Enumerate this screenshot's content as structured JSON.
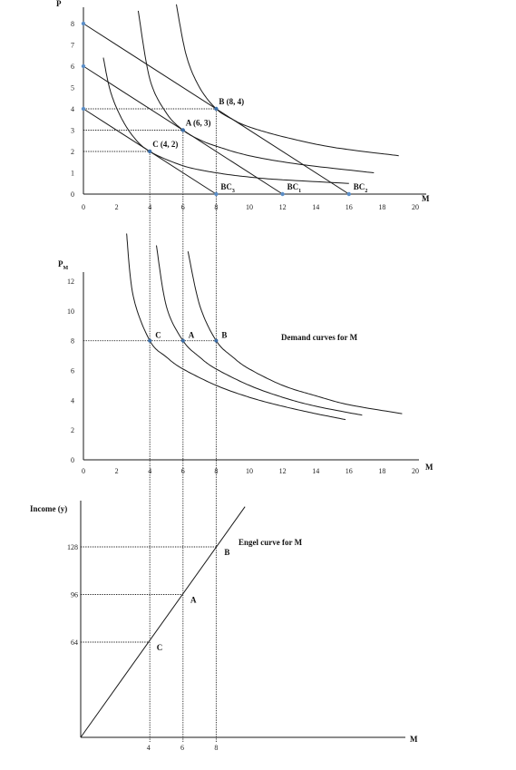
{
  "chart_data": [
    {
      "type": "line",
      "panel": "indifference-budget",
      "ylabel": "P",
      "xlabel": "M",
      "xlim": [
        0,
        20
      ],
      "ylim": [
        0,
        8
      ],
      "xticks": [
        "0",
        "2",
        "4",
        "6",
        "8",
        "10",
        "12",
        "14",
        "16",
        "18",
        "20"
      ],
      "yticks": [
        "0",
        "1",
        "2",
        "3",
        "4",
        "5",
        "6",
        "7",
        "8"
      ],
      "budget_lines": [
        {
          "name": "BC",
          "sub": "3",
          "x": [
            0,
            8
          ],
          "y": [
            4,
            0
          ]
        },
        {
          "name": "BC",
          "sub": "1",
          "x": [
            0,
            12
          ],
          "y": [
            6,
            0
          ]
        },
        {
          "name": "BC",
          "sub": "2",
          "x": [
            0,
            16
          ],
          "y": [
            8,
            0
          ]
        }
      ],
      "indifference_curves": [
        {
          "x": [
            1.2,
            1.6,
            2.2,
            3,
            4,
            6,
            8,
            10,
            12,
            16
          ],
          "y": [
            6.4,
            4.9,
            3.7,
            2.7,
            2.0,
            1.33,
            1.0,
            0.8,
            0.67,
            0.5
          ]
        },
        {
          "x": [
            3.3,
            4,
            5,
            6,
            7,
            8,
            10,
            13,
            17.5
          ],
          "y": [
            8.6,
            5.4,
            3.8,
            3.0,
            2.55,
            2.25,
            1.8,
            1.4,
            1.0
          ]
        },
        {
          "x": [
            5.6,
            6.2,
            7,
            8,
            9,
            10,
            12,
            15,
            19
          ],
          "y": [
            8.9,
            6.5,
            5.0,
            4.0,
            3.5,
            3.15,
            2.7,
            2.2,
            1.8
          ]
        }
      ],
      "points": [
        {
          "label": "A (6, 3)",
          "x": 6,
          "y": 3
        },
        {
          "label": "B (8, 4)",
          "x": 8,
          "y": 4
        },
        {
          "label": "C (4, 2)",
          "x": 4,
          "y": 2
        }
      ]
    },
    {
      "type": "line",
      "panel": "demand",
      "ylabel": "P",
      "ylabel_sub": "M",
      "xlabel": "M",
      "xlim": [
        0,
        20
      ],
      "ylim": [
        0,
        12
      ],
      "xticks": [
        "0",
        "2",
        "4",
        "6",
        "8",
        "10",
        "12",
        "14",
        "16",
        "18",
        "20"
      ],
      "yticks": [
        "0",
        "2",
        "4",
        "6",
        "8",
        "10",
        "12"
      ],
      "annotation": "Demand curves for M",
      "price_line": 8,
      "series": [
        {
          "x": [
            2.6,
            3,
            4,
            5,
            6,
            8,
            10,
            12,
            14,
            15.8
          ],
          "y": [
            15.2,
            11.0,
            8.0,
            6.9,
            6.1,
            5.0,
            4.2,
            3.6,
            3.1,
            2.7
          ]
        },
        {
          "x": [
            4.4,
            5,
            6,
            7,
            8,
            10,
            12,
            14,
            16.8
          ],
          "y": [
            14.4,
            10.3,
            8.0,
            6.9,
            6.1,
            5.0,
            4.2,
            3.6,
            3.0
          ]
        },
        {
          "x": [
            6.3,
            7,
            8,
            9,
            10,
            12,
            14,
            16,
            19.2
          ],
          "y": [
            14.0,
            10.4,
            8.0,
            6.9,
            6.1,
            5.0,
            4.3,
            3.7,
            3.1
          ]
        }
      ],
      "points": [
        {
          "label": "C",
          "x": 4,
          "y": 8
        },
        {
          "label": "A",
          "x": 6,
          "y": 8
        },
        {
          "label": "B",
          "x": 8,
          "y": 8
        }
      ]
    },
    {
      "type": "line",
      "panel": "engel",
      "ylabel": "Income (y)",
      "xlabel": "M",
      "xlim": [
        0,
        20
      ],
      "ylim": [
        0,
        140
      ],
      "xticks": [
        "4",
        "6",
        "8"
      ],
      "xtick_values": [
        4,
        6,
        8
      ],
      "yticks": [
        "64",
        "96",
        "128"
      ],
      "ytick_values": [
        64,
        96,
        128
      ],
      "annotation": "Engel curve for M",
      "series": [
        {
          "x": [
            0,
            9.7
          ],
          "y": [
            0,
            155
          ]
        }
      ],
      "points": [
        {
          "label": "C",
          "x": 4,
          "y": 64
        },
        {
          "label": "A",
          "x": 6,
          "y": 96
        },
        {
          "label": "B",
          "x": 8,
          "y": 128
        }
      ]
    }
  ]
}
